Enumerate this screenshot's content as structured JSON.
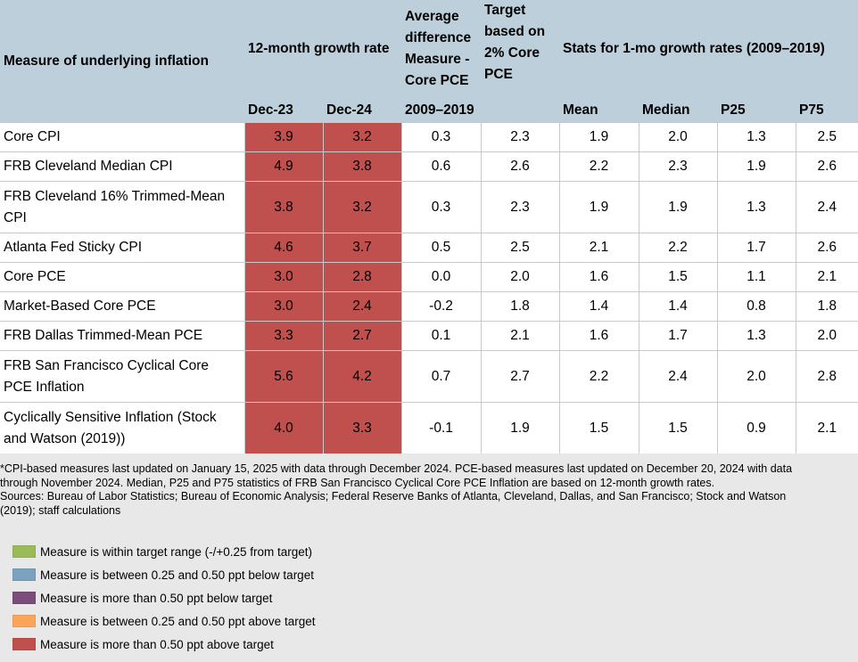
{
  "header": {
    "measure": "Measure of underlying inflation",
    "growth12": "12-month growth rate",
    "avgdiff_l1": "Average",
    "avgdiff_l2": "difference",
    "avgdiff_l3": "Measure -",
    "avgdiff_l4": "Core PCE",
    "target_l1": "Target",
    "target_l2": "based on",
    "target_l3": "2% Core",
    "target_l4": "PCE",
    "stats": "Stats for 1-mo growth rates (2009–2019)",
    "dec23": "Dec-23",
    "dec24": "Dec-24",
    "period": "2009–2019",
    "mean": "Mean",
    "median": "Median",
    "p25": "P25",
    "p75": "P75"
  },
  "rows": [
    {
      "label": "Core CPI",
      "dec23": "3.9",
      "dec24": "3.2",
      "avgdiff": "0.3",
      "target": "2.3",
      "mean": "1.9",
      "median": "2.0",
      "p25": "1.3",
      "p75": "2.5",
      "hl23": "above-050",
      "hl24": "above-050"
    },
    {
      "label": "FRB Cleveland Median CPI",
      "dec23": "4.9",
      "dec24": "3.8",
      "avgdiff": "0.6",
      "target": "2.6",
      "mean": "2.2",
      "median": "2.3",
      "p25": "1.9",
      "p75": "2.6",
      "hl23": "above-050",
      "hl24": "above-050"
    },
    {
      "label": "FRB Cleveland 16% Trimmed-Mean CPI",
      "dec23": "3.8",
      "dec24": "3.2",
      "avgdiff": "0.3",
      "target": "2.3",
      "mean": "1.9",
      "median": "1.9",
      "p25": "1.3",
      "p75": "2.4",
      "hl23": "above-050",
      "hl24": "above-050"
    },
    {
      "label": "Atlanta Fed Sticky CPI",
      "dec23": "4.6",
      "dec24": "3.7",
      "avgdiff": "0.5",
      "target": "2.5",
      "mean": "2.1",
      "median": "2.2",
      "p25": "1.7",
      "p75": "2.6",
      "hl23": "above-050",
      "hl24": "above-050"
    },
    {
      "label": "Core PCE",
      "dec23": "3.0",
      "dec24": "2.8",
      "avgdiff": "0.0",
      "target": "2.0",
      "mean": "1.6",
      "median": "1.5",
      "p25": "1.1",
      "p75": "2.1",
      "hl23": "above-050",
      "hl24": "above-050"
    },
    {
      "label": "Market-Based Core PCE",
      "dec23": "3.0",
      "dec24": "2.4",
      "avgdiff": "-0.2",
      "target": "1.8",
      "mean": "1.4",
      "median": "1.4",
      "p25": "0.8",
      "p75": "1.8",
      "hl23": "above-050",
      "hl24": "above-050"
    },
    {
      "label": "FRB Dallas Trimmed-Mean PCE",
      "dec23": "3.3",
      "dec24": "2.7",
      "avgdiff": "0.1",
      "target": "2.1",
      "mean": "1.6",
      "median": "1.7",
      "p25": "1.3",
      "p75": "2.0",
      "hl23": "above-050",
      "hl24": "above-050"
    },
    {
      "label": "FRB San Francisco Cyclical Core PCE Inflation",
      "dec23": "5.6",
      "dec24": "4.2",
      "avgdiff": "0.7",
      "target": "2.7",
      "mean": "2.2",
      "median": "2.4",
      "p25": "2.0",
      "p75": "2.8",
      "hl23": "above-050",
      "hl24": "above-050"
    },
    {
      "label": "Cyclically Sensitive Inflation (Stock and Watson (2019))",
      "dec23": "4.0",
      "dec24": "3.3",
      "avgdiff": "-0.1",
      "target": "1.9",
      "mean": "1.5",
      "median": "1.5",
      "p25": "0.9",
      "p75": "2.1",
      "hl23": "above-050",
      "hl24": "above-050"
    }
  ],
  "notes": {
    "line1": "*CPI-based measures last updated on January 15, 2025 with data through December 2024. PCE-based measures last updated on December 20, 2024 with data",
    "line2": "through November 2024. Median, P25 and P75 statistics of FRB San Francisco Cyclical Core PCE Inflation are based on 12-month growth rates.",
    "line3": "Sources: Bureau of Labor Statistics; Bureau of Economic Analysis; Federal Reserve Banks of Atlanta, Cleveland, Dallas, and San Francisco; Stock and Watson",
    "line4": "(2019); staff calculations"
  },
  "legend": [
    {
      "label": "Measure is within target range (-/+0.25 from target)",
      "color": "#9bbb59"
    },
    {
      "label": "Measure is between 0.25 and 0.50 ppt below target",
      "color": "#7ba2bf"
    },
    {
      "label": "Measure is more than 0.50 ppt below target",
      "color": "#7b4d7b"
    },
    {
      "label": "Measure is between 0.25 and 0.50 ppt above target",
      "color": "#f9a65a"
    },
    {
      "label": "Measure is more than 0.50 ppt above target",
      "color": "#c0504d"
    }
  ]
}
